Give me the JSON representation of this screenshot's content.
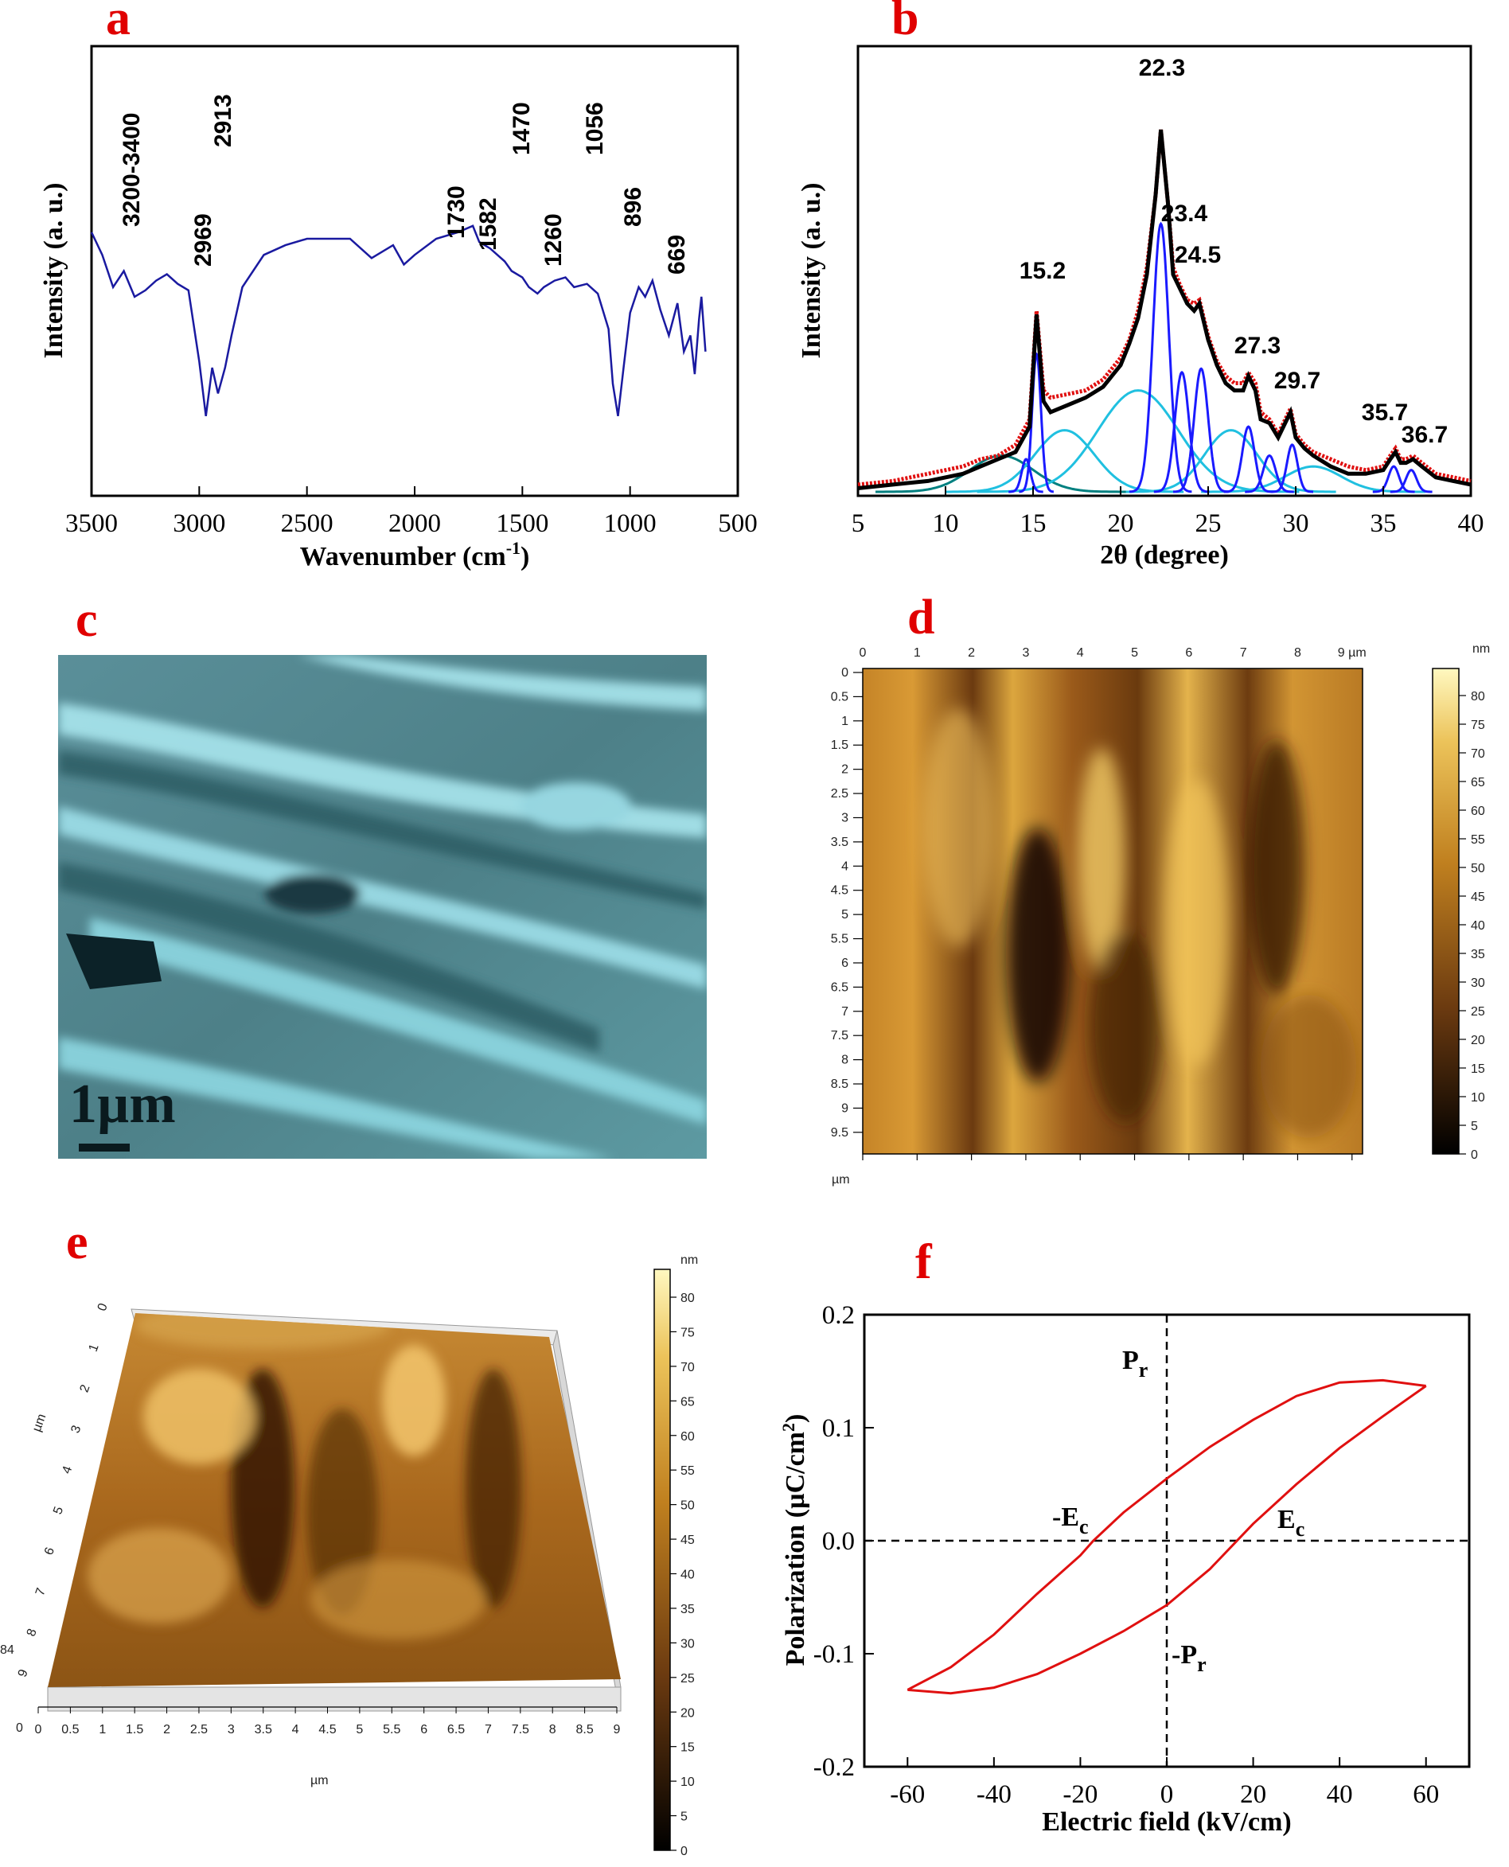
{
  "panels": {
    "a": {
      "letter": "a"
    },
    "b": {
      "letter": "b"
    },
    "c": {
      "letter": "c"
    },
    "d": {
      "letter": "d"
    },
    "e": {
      "letter": "e"
    },
    "f": {
      "letter": "f"
    }
  },
  "chart_data": [
    {
      "id": "a",
      "type": "line",
      "xlabel": "Wavenumber (cm",
      "xlabel_sup": "-1",
      "xlabel_close": ")",
      "ylabel": "Intensity (a. u.)",
      "xlim": [
        3500,
        500
      ],
      "xticks": [
        "3500",
        "3000",
        "2500",
        "2000",
        "1500",
        "1000",
        "500"
      ],
      "peak_labels": [
        "3200-3400",
        "2913",
        "2969",
        "1730",
        "1582",
        "1470",
        "1260",
        "1056",
        "896",
        "669"
      ],
      "series": [
        {
          "color": "#1a1aa0",
          "x": [
            3500,
            3450,
            3400,
            3350,
            3300,
            3250,
            3200,
            3150,
            3100,
            3050,
            3000,
            2969,
            2940,
            2913,
            2880,
            2850,
            2800,
            2700,
            2600,
            2500,
            2400,
            2300,
            2200,
            2100,
            2050,
            2000,
            1900,
            1800,
            1730,
            1700,
            1650,
            1582,
            1550,
            1500,
            1470,
            1430,
            1400,
            1350,
            1300,
            1260,
            1200,
            1150,
            1100,
            1080,
            1056,
            1030,
            1000,
            960,
            930,
            896,
            860,
            820,
            780,
            750,
            720,
            700,
            680,
            669,
            650
          ],
          "y": [
            0.62,
            0.55,
            0.45,
            0.5,
            0.42,
            0.44,
            0.47,
            0.49,
            0.46,
            0.44,
            0.22,
            0.05,
            0.2,
            0.12,
            0.2,
            0.3,
            0.45,
            0.55,
            0.58,
            0.6,
            0.6,
            0.6,
            0.54,
            0.58,
            0.52,
            0.55,
            0.6,
            0.62,
            0.64,
            0.59,
            0.57,
            0.53,
            0.5,
            0.48,
            0.45,
            0.43,
            0.45,
            0.47,
            0.48,
            0.45,
            0.46,
            0.43,
            0.32,
            0.15,
            0.05,
            0.2,
            0.37,
            0.45,
            0.42,
            0.47,
            0.38,
            0.3,
            0.4,
            0.25,
            0.3,
            0.18,
            0.35,
            0.42,
            0.25
          ]
        }
      ]
    },
    {
      "id": "b",
      "type": "line",
      "xlabel": "2θ (degree)",
      "ylabel": "Intensity (a. u.)",
      "xlim": [
        5,
        40
      ],
      "xticks": [
        "5",
        "10",
        "15",
        "20",
        "25",
        "30",
        "35",
        "40"
      ],
      "peak_labels": [
        "22.3",
        "23.4",
        "24.5",
        "15.2",
        "27.3",
        "29.7",
        "35.7",
        "36.7"
      ],
      "series": [
        {
          "name": "observed",
          "color": "#e01010",
          "x": [
            5,
            7,
            9,
            11,
            12,
            13,
            14,
            14.8,
            15.2,
            15.6,
            16,
            17,
            18,
            19,
            20,
            20.5,
            21,
            21.5,
            22,
            22.3,
            22.7,
            23,
            23.4,
            23.8,
            24.2,
            24.5,
            25,
            25.5,
            26,
            26.5,
            27,
            27.3,
            27.7,
            28,
            28.5,
            29,
            29.4,
            29.7,
            30,
            30.5,
            31,
            32,
            33,
            34,
            35,
            35.4,
            35.7,
            36,
            36.3,
            36.7,
            37.2,
            38,
            39,
            40
          ],
          "y": [
            0.02,
            0.03,
            0.05,
            0.07,
            0.09,
            0.1,
            0.13,
            0.2,
            0.5,
            0.28,
            0.26,
            0.27,
            0.28,
            0.31,
            0.37,
            0.42,
            0.5,
            0.62,
            0.82,
            1.0,
            0.8,
            0.62,
            0.57,
            0.53,
            0.52,
            0.53,
            0.43,
            0.36,
            0.32,
            0.3,
            0.3,
            0.33,
            0.3,
            0.22,
            0.2,
            0.16,
            0.2,
            0.23,
            0.16,
            0.13,
            0.11,
            0.09,
            0.07,
            0.06,
            0.07,
            0.1,
            0.12,
            0.09,
            0.09,
            0.1,
            0.08,
            0.05,
            0.04,
            0.03
          ]
        },
        {
          "name": "fit",
          "color": "#000000",
          "x": [
            5,
            7,
            9,
            11,
            12,
            13,
            14,
            14.8,
            15.2,
            15.6,
            16,
            17,
            18,
            19,
            20,
            20.5,
            21,
            21.5,
            22,
            22.3,
            22.7,
            23,
            23.4,
            23.8,
            24.2,
            24.5,
            25,
            25.5,
            26,
            26.5,
            27,
            27.3,
            27.7,
            28,
            28.5,
            29,
            29.4,
            29.7,
            30,
            30.5,
            31,
            32,
            33,
            34,
            35,
            35.4,
            35.7,
            36,
            36.3,
            36.7,
            37.2,
            38,
            39,
            40
          ],
          "y": [
            0.01,
            0.02,
            0.03,
            0.05,
            0.07,
            0.09,
            0.11,
            0.18,
            0.49,
            0.25,
            0.22,
            0.24,
            0.26,
            0.29,
            0.35,
            0.41,
            0.48,
            0.6,
            0.82,
            1.0,
            0.8,
            0.6,
            0.56,
            0.52,
            0.5,
            0.52,
            0.42,
            0.35,
            0.3,
            0.28,
            0.28,
            0.32,
            0.28,
            0.2,
            0.19,
            0.15,
            0.19,
            0.22,
            0.15,
            0.12,
            0.1,
            0.07,
            0.05,
            0.05,
            0.06,
            0.09,
            0.11,
            0.08,
            0.08,
            0.09,
            0.07,
            0.04,
            0.03,
            0.02
          ]
        }
      ],
      "components": [
        {
          "center": 13.2,
          "height": 0.1,
          "width": 1.8,
          "color": "#008080"
        },
        {
          "center": 16.8,
          "height": 0.17,
          "width": 1.7,
          "color": "#20c0e0"
        },
        {
          "center": 21.0,
          "height": 0.28,
          "width": 2.3,
          "color": "#20c0e0"
        },
        {
          "center": 26.3,
          "height": 0.17,
          "width": 1.5,
          "color": "#20c0e0"
        },
        {
          "center": 31.0,
          "height": 0.07,
          "width": 1.6,
          "color": "#20c0e0"
        },
        {
          "center": 14.6,
          "height": 0.09,
          "width": 0.25,
          "color": "#1a1aff"
        },
        {
          "center": 15.2,
          "height": 0.38,
          "width": 0.25,
          "color": "#1a1aff"
        },
        {
          "center": 22.3,
          "height": 0.74,
          "width": 0.45,
          "color": "#1a1aff"
        },
        {
          "center": 23.5,
          "height": 0.33,
          "width": 0.4,
          "color": "#1a1aff"
        },
        {
          "center": 24.6,
          "height": 0.34,
          "width": 0.4,
          "color": "#1a1aff"
        },
        {
          "center": 27.3,
          "height": 0.18,
          "width": 0.35,
          "color": "#1a1aff"
        },
        {
          "center": 28.5,
          "height": 0.1,
          "width": 0.35,
          "color": "#1a1aff"
        },
        {
          "center": 29.8,
          "height": 0.13,
          "width": 0.3,
          "color": "#1a1aff"
        },
        {
          "center": 35.6,
          "height": 0.07,
          "width": 0.3,
          "color": "#1a1aff"
        },
        {
          "center": 36.6,
          "height": 0.06,
          "width": 0.3,
          "color": "#1a1aff"
        }
      ]
    },
    {
      "id": "d",
      "type": "heatmap",
      "x_unit": "µm",
      "y_unit": "µm",
      "xticks": [
        "0",
        "1",
        "2",
        "3",
        "4",
        "5",
        "6",
        "7",
        "8",
        "9 µm"
      ],
      "yticks": [
        "0",
        "0.5",
        "1",
        "1.5",
        "2",
        "2.5",
        "3",
        "3.5",
        "4",
        "4.5",
        "5",
        "5.5",
        "6",
        "6.5",
        "7",
        "7.5",
        "8",
        "8.5",
        "9",
        "9.5"
      ],
      "colorbar_unit": "nm",
      "colorbar_ticks": [
        "80",
        "75",
        "70",
        "65",
        "60",
        "55",
        "50",
        "45",
        "40",
        "35",
        "30",
        "25",
        "20",
        "15",
        "10",
        "5",
        "0"
      ],
      "colors": [
        "#000000",
        "#5a2e08",
        "#b06f1c",
        "#e2b34c",
        "#fff5b0"
      ]
    },
    {
      "id": "e",
      "type": "heatmap",
      "x_unit": "µm",
      "y_unit": "µm",
      "xticks": [
        "0",
        "0.5",
        "1",
        "1.5",
        "2",
        "2.5",
        "3",
        "3.5",
        "4",
        "4.5",
        "5",
        "5.5",
        "6",
        "6.5",
        "7",
        "7.5",
        "8",
        "8.5",
        "9"
      ],
      "yticks": [
        "0",
        "1",
        "2",
        "3",
        "4",
        "5",
        "6",
        "7",
        "8",
        "9"
      ],
      "corner_label": "84",
      "origin_label": "0",
      "colorbar_unit": "nm",
      "colorbar_ticks": [
        "80",
        "75",
        "70",
        "65",
        "60",
        "55",
        "50",
        "45",
        "40",
        "35",
        "30",
        "25",
        "20",
        "15",
        "10",
        "5",
        "0"
      ]
    },
    {
      "id": "f",
      "type": "line",
      "xlabel": "Electric field (kV/cm)",
      "ylabel": "Polarization (µC/cm",
      "ylabel_sup": "2",
      "ylabel_close": ")",
      "xlim": [
        -70,
        70
      ],
      "ylim": [
        -0.2,
        0.2
      ],
      "xticks": [
        "-60",
        "-40",
        "-20",
        "0",
        "20",
        "40",
        "60"
      ],
      "yticks": [
        "0.2",
        "0.1",
        "0.0",
        "-0.1",
        "-0.2"
      ],
      "annotations": {
        "pr": "P",
        "pr_sub": "r",
        "neg_pr": "-P",
        "neg_pr_sub": "r",
        "ec": "E",
        "ec_sub": "c",
        "neg_ec": "-E",
        "neg_ec_sub": "c"
      },
      "series": [
        {
          "name": "upper branch",
          "color": "#e01010",
          "x": [
            60,
            50,
            40,
            30,
            20,
            10,
            0,
            -10,
            -17,
            -20,
            -30,
            -40,
            -50,
            -60
          ],
          "y": [
            0.137,
            0.142,
            0.14,
            0.128,
            0.107,
            0.083,
            0.055,
            0.025,
            0.0,
            -0.013,
            -0.047,
            -0.083,
            -0.112,
            -0.132
          ]
        },
        {
          "name": "lower branch",
          "color": "#e01010",
          "x": [
            -60,
            -50,
            -40,
            -30,
            -20,
            -10,
            0,
            10,
            20,
            30,
            40,
            50,
            60
          ],
          "y": [
            -0.132,
            -0.135,
            -0.13,
            -0.118,
            -0.1,
            -0.08,
            -0.057,
            -0.025,
            0.015,
            0.05,
            0.082,
            0.11,
            0.137
          ]
        }
      ]
    }
  ],
  "sem": {
    "scale_label": "1µm"
  }
}
